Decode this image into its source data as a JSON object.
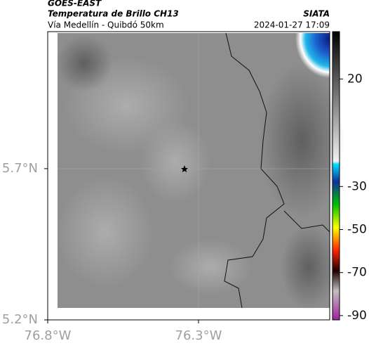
{
  "header": {
    "source": "GOES-EAST",
    "product": "Temperatura de Brillo CH13",
    "brand": "SIATA",
    "region": "Vía Medellín - Quibdó 50km",
    "timestamp": "2024-01-27 17:09"
  },
  "map": {
    "lat_range": [
      5.2,
      6.153
    ],
    "lon_range": [
      -76.8,
      -75.865
    ],
    "lat_ticks": [
      {
        "value": 5.7,
        "label": "5.7°N"
      },
      {
        "value": 5.2,
        "label": "5.2°N"
      }
    ],
    "lon_ticks": [
      {
        "value": -76.8,
        "label": "76.8°W"
      },
      {
        "value": -76.3,
        "label": "76.3°W"
      }
    ]
  },
  "colorbar": {
    "range": [
      -92,
      42
    ],
    "ticks": [
      20,
      -30,
      -50,
      -70,
      -90
    ]
  }
}
